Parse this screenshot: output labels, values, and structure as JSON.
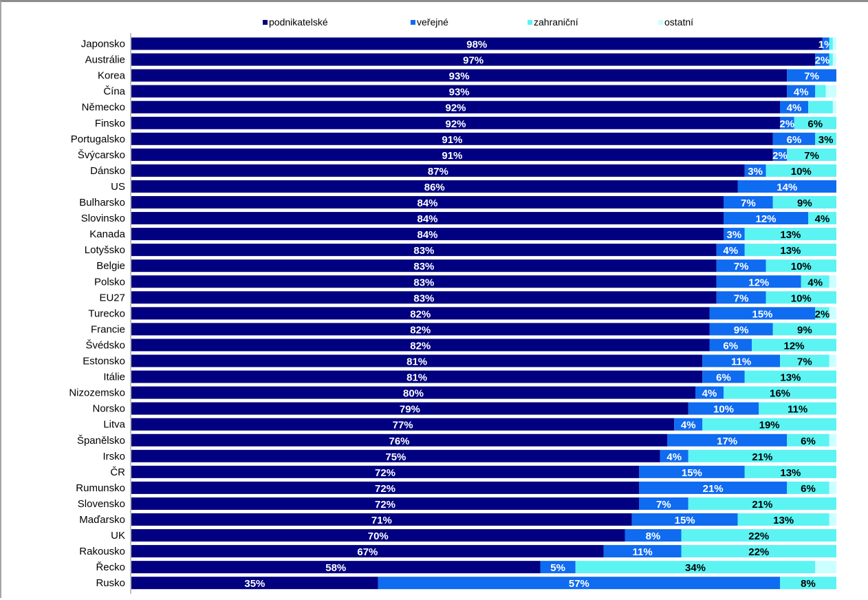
{
  "chart_data": {
    "type": "bar",
    "orientation": "horizontal",
    "stacked": true,
    "percent_stacked": true,
    "title": "",
    "xlabel": "",
    "ylabel": "",
    "xlim": [
      0,
      100
    ],
    "grid": false,
    "legend_position": "top",
    "categories": [
      "Japonsko",
      "Austrálie",
      "Korea",
      "Čína",
      "Německo",
      "Finsko",
      "Portugalsko",
      "Švýcarsko",
      "Dánsko",
      "US",
      "Bulharsko",
      "Slovinsko",
      "Kanada",
      "Lotyšsko",
      "Belgie",
      "Polsko",
      "EU27",
      "Turecko",
      "Francie",
      "Švédsko",
      "Estonsko",
      "Itálie",
      "Nizozemsko",
      "Norsko",
      "Litva",
      "Španělsko",
      "Irsko",
      "ČR",
      "Rumunsko",
      "Slovensko",
      "Maďarsko",
      "UK",
      "Rakousko",
      "Řecko",
      "Rusko"
    ],
    "series": [
      {
        "name": "podnikatelské",
        "color": "#000080",
        "label_color": "#ffffff",
        "values": [
          98,
          97,
          93,
          93,
          92,
          92,
          91,
          91,
          87,
          86,
          84,
          84,
          84,
          83,
          83,
          83,
          83,
          82,
          82,
          82,
          81,
          81,
          80,
          79,
          77,
          76,
          75,
          72,
          72,
          72,
          71,
          70,
          67,
          58,
          35
        ],
        "labels": [
          "98%",
          "97%",
          "93%",
          "93%",
          "92%",
          "92%",
          "91%",
          "91%",
          "87%",
          "86%",
          "84%",
          "84%",
          "84%",
          "83%",
          "83%",
          "83%",
          "83%",
          "82%",
          "82%",
          "82%",
          "81%",
          "81%",
          "80%",
          "79%",
          "77%",
          "76%",
          "75%",
          "72%",
          "72%",
          "72%",
          "71%",
          "70%",
          "67%",
          "58%",
          "35%"
        ]
      },
      {
        "name": "veřejné",
        "color": "#0f6bf0",
        "label_color": "#ffffff",
        "values": [
          1,
          2,
          7,
          4,
          4,
          2,
          6,
          2,
          3,
          14,
          7,
          12,
          3,
          4,
          7,
          12,
          7,
          15,
          9,
          6,
          11,
          6,
          4,
          10,
          4,
          17,
          4,
          15,
          21,
          7,
          15,
          8,
          11,
          5,
          57
        ],
        "labels": [
          "1%",
          "2%",
          "7%",
          "4%",
          "4%",
          "2%",
          "6%",
          "2%",
          "3%",
          "14%",
          "7%",
          "12%",
          "3%",
          "4%",
          "7%",
          "12%",
          "7%",
          "15%",
          "9%",
          "6%",
          "11%",
          "6%",
          "4%",
          "10%",
          "4%",
          "17%",
          "4%",
          "15%",
          "21%",
          "7%",
          "15%",
          "8%",
          "11%",
          "5%",
          "57%"
        ]
      },
      {
        "name": "zahraniční",
        "color": "#5cf3f3",
        "label_color": "#000000",
        "values": [
          0.5,
          0.5,
          0,
          1.5,
          3.5,
          6,
          3,
          7,
          10,
          0,
          9,
          4,
          13,
          13,
          10,
          4,
          10,
          2,
          9,
          12,
          7,
          13,
          16,
          11,
          19,
          6,
          21,
          13,
          6,
          21,
          13,
          22,
          22,
          34,
          8
        ],
        "labels": [
          "",
          "",
          "",
          "",
          "",
          "6%",
          "3%",
          "7%",
          "10%",
          "",
          "9%",
          "4%",
          "13%",
          "13%",
          "10%",
          "4%",
          "10%",
          "2%",
          "9%",
          "12%",
          "7%",
          "13%",
          "16%",
          "11%",
          "19%",
          "6%",
          "21%",
          "13%",
          "6%",
          "21%",
          "13%",
          "22%",
          "22%",
          "34%",
          "8%"
        ]
      },
      {
        "name": "ostatní",
        "color": "#ccffff",
        "label_color": "#000000",
        "values": [
          0.5,
          0.5,
          0,
          1.5,
          0.5,
          0,
          0,
          0,
          0,
          0,
          0,
          0,
          0,
          0,
          0,
          1,
          0,
          1,
          0,
          0,
          1,
          0,
          0,
          0,
          0,
          1,
          0,
          0,
          1,
          0,
          1,
          0,
          0,
          3,
          0
        ],
        "labels": [
          "",
          "",
          "",
          "",
          "",
          "",
          "",
          "",
          "",
          "",
          "",
          "",
          "",
          "",
          "",
          "",
          "",
          "",
          "",
          "",
          "",
          "",
          "",
          "",
          "",
          "",
          "",
          "",
          "",
          "",
          "",
          "",
          "",
          "",
          ""
        ]
      }
    ]
  }
}
